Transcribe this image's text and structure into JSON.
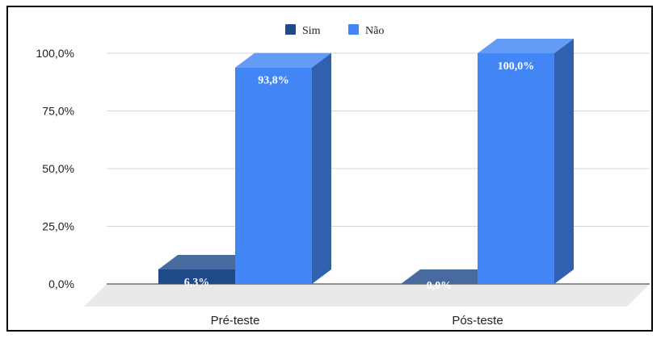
{
  "chart_data": {
    "type": "bar",
    "title": "",
    "xlabel": "",
    "ylabel": "",
    "categories": [
      "Pré-teste",
      "Pós-teste"
    ],
    "series": [
      {
        "name": "Sim",
        "values": [
          6.3,
          0.0
        ],
        "labels": [
          "6,3%",
          "0,0%"
        ],
        "color": "#1f4a8a"
      },
      {
        "name": "Não",
        "values": [
          93.8,
          100.0
        ],
        "labels": [
          "93,8%",
          "100,0%"
        ],
        "color": "#4285f4"
      }
    ],
    "ylim": [
      0,
      100
    ],
    "yticks": [
      0,
      25,
      50,
      75,
      100
    ],
    "ytick_labels": [
      "0,0%",
      "25,0%",
      "50,0%",
      "75,0%",
      "100,0%"
    ],
    "grid": true,
    "legend_position": "top-center",
    "style": "3d-bar"
  }
}
